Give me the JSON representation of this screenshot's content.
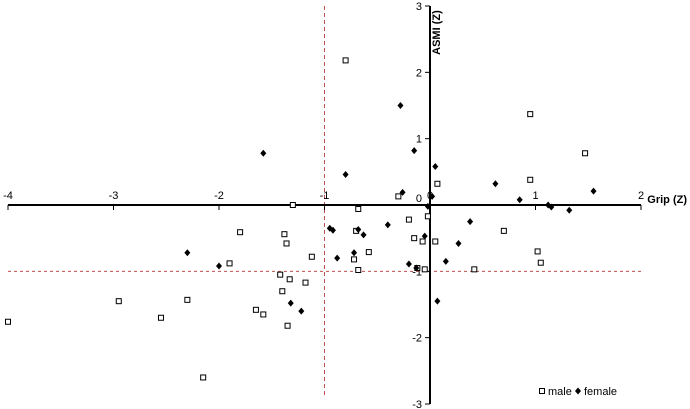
{
  "chart_data": {
    "type": "scatter",
    "title": "",
    "xlabel": "Grip (Z)",
    "ylabel": "ASMI (Z)",
    "xlim": [
      -4,
      2
    ],
    "ylim": [
      -3,
      3
    ],
    "xticks": [
      -4,
      -3,
      -2,
      -1,
      0,
      1,
      2
    ],
    "yticks": [
      -3,
      -2,
      -1,
      1,
      2,
      3
    ],
    "yzero_label": "0",
    "grid": false,
    "legend_placement": "bottom-right",
    "reference_lines": [
      {
        "orientation": "vertical",
        "value": -1,
        "color": "#c0504d",
        "style": "dashed"
      },
      {
        "orientation": "horizontal",
        "value": -1,
        "color": "#c0504d",
        "style": "dashed"
      }
    ],
    "series": [
      {
        "name": "male",
        "marker": "open-square",
        "color": "#000000",
        "points": [
          [
            -4.0,
            -1.76
          ],
          [
            -2.95,
            -1.45
          ],
          [
            -2.55,
            -1.7
          ],
          [
            -2.3,
            -1.43
          ],
          [
            -2.15,
            -2.6
          ],
          [
            -1.9,
            -0.88
          ],
          [
            -1.8,
            -0.41
          ],
          [
            -1.65,
            -1.58
          ],
          [
            -1.58,
            -1.65
          ],
          [
            -1.42,
            -1.05
          ],
          [
            -1.4,
            -1.3
          ],
          [
            -1.38,
            -0.44
          ],
          [
            -1.36,
            -0.58
          ],
          [
            -1.35,
            -1.82
          ],
          [
            -1.33,
            -1.12
          ],
          [
            -1.3,
            0.0
          ],
          [
            -1.18,
            -1.17
          ],
          [
            -1.12,
            -0.78
          ],
          [
            -0.8,
            2.18
          ],
          [
            -0.72,
            -0.82
          ],
          [
            -0.7,
            -0.39
          ],
          [
            -0.68,
            -0.98
          ],
          [
            -0.68,
            -0.06
          ],
          [
            -0.58,
            -0.71
          ],
          [
            -0.3,
            0.13
          ],
          [
            -0.2,
            -0.22
          ],
          [
            -0.15,
            -0.5
          ],
          [
            -0.12,
            -0.95
          ],
          [
            -0.07,
            -0.55
          ],
          [
            -0.05,
            -0.97
          ],
          [
            -0.02,
            -0.17
          ],
          [
            0.05,
            -0.55
          ],
          [
            0.07,
            0.32
          ],
          [
            0.42,
            -0.97
          ],
          [
            0.7,
            -0.39
          ],
          [
            0.95,
            1.37
          ],
          [
            0.95,
            0.38
          ],
          [
            1.02,
            -0.7
          ],
          [
            1.05,
            -0.87
          ],
          [
            1.47,
            0.78
          ]
        ]
      },
      {
        "name": "female",
        "marker": "filled-diamond",
        "color": "#000000",
        "points": [
          [
            -2.3,
            -0.72
          ],
          [
            -2.0,
            -0.92
          ],
          [
            -1.58,
            0.78
          ],
          [
            -1.32,
            -1.48
          ],
          [
            -1.22,
            -1.6
          ],
          [
            -0.95,
            -0.35
          ],
          [
            -0.92,
            -0.38
          ],
          [
            -0.88,
            -0.8
          ],
          [
            -0.8,
            0.46
          ],
          [
            -0.72,
            -0.72
          ],
          [
            -0.68,
            -0.37
          ],
          [
            -0.63,
            -0.45
          ],
          [
            -0.4,
            -0.3
          ],
          [
            -0.28,
            1.5
          ],
          [
            -0.26,
            0.19
          ],
          [
            -0.2,
            -0.89
          ],
          [
            -0.15,
            0.82
          ],
          [
            -0.13,
            -0.95
          ],
          [
            -0.05,
            -0.47
          ],
          [
            -0.02,
            -0.02
          ],
          [
            0.02,
            0.13
          ],
          [
            0.05,
            0.58
          ],
          [
            0.07,
            -1.45
          ],
          [
            0.15,
            -0.85
          ],
          [
            0.27,
            -0.58
          ],
          [
            0.38,
            -0.25
          ],
          [
            0.62,
            0.32
          ],
          [
            0.85,
            0.08
          ],
          [
            1.12,
            0.0
          ],
          [
            1.15,
            -0.03
          ],
          [
            1.32,
            -0.08
          ],
          [
            1.55,
            0.21
          ]
        ]
      }
    ]
  },
  "legend": {
    "male_label": "male",
    "female_label": "female"
  }
}
